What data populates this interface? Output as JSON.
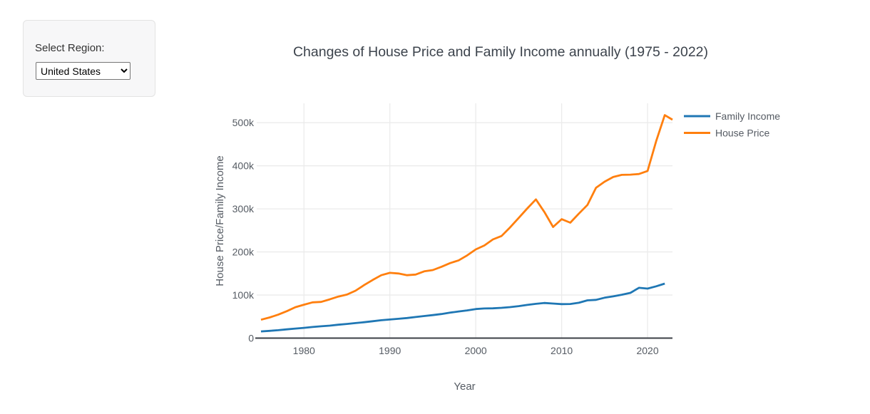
{
  "controls": {
    "region_label": "Select Region:",
    "region_value": "United States"
  },
  "colors": {
    "family_income_line": "#1f77b4",
    "house_price_line": "#ff7f0e",
    "grid": "#ebebeb",
    "axis_line": "#3b3f46",
    "tick_text": "#555b63",
    "title_text": "#3c434c",
    "panel_bg": "#f7f7f8"
  },
  "chart_data": {
    "type": "line",
    "title": "Changes of House Price and Family Income annually (1975 - 2022)",
    "xlabel": "Year",
    "ylabel": "House Price/Family Income",
    "grid": true,
    "legend_position": "outside-top-right",
    "x_range": [
      1974.5,
      2022.9
    ],
    "y_range_k": [
      0,
      545
    ],
    "x_ticks": [
      {
        "value": 1980,
        "label": "1980"
      },
      {
        "value": 1990,
        "label": "1990"
      },
      {
        "value": 2000,
        "label": "2000"
      },
      {
        "value": 2010,
        "label": "2010"
      },
      {
        "value": 2020,
        "label": "2020"
      }
    ],
    "y_ticks": [
      {
        "value_k": 0,
        "label": "0"
      },
      {
        "value_k": 100,
        "label": "100k"
      },
      {
        "value_k": 200,
        "label": "200k"
      },
      {
        "value_k": 300,
        "label": "300k"
      },
      {
        "value_k": 400,
        "label": "400k"
      },
      {
        "value_k": 500,
        "label": "500k"
      }
    ],
    "x": [
      1975,
      1976,
      1977,
      1978,
      1979,
      1980,
      1981,
      1982,
      1983,
      1984,
      1985,
      1986,
      1987,
      1988,
      1989,
      1990,
      1991,
      1992,
      1993,
      1994,
      1995,
      1996,
      1997,
      1998,
      1999,
      2000,
      2001,
      2002,
      2003,
      2004,
      2005,
      2006,
      2007,
      2008,
      2009,
      2010,
      2011,
      2012,
      2013,
      2014,
      2015,
      2016,
      2017,
      2018,
      2019,
      2020,
      2021,
      2022
    ],
    "series": [
      {
        "name": "Family Income",
        "color": "#1f77b4",
        "values_k": [
          15.5,
          16.9,
          18.4,
          20.3,
          22.2,
          23.9,
          25.8,
          27.4,
          28.9,
          31.1,
          32.9,
          34.9,
          36.9,
          39.2,
          41.5,
          43.2,
          44.8,
          46.6,
          49.0,
          51.3,
          53.5,
          55.9,
          59.0,
          61.8,
          64.3,
          67.5,
          68.8,
          69.2,
          70.3,
          72.0,
          74.3,
          77.0,
          79.5,
          81.5,
          80.2,
          78.9,
          79.3,
          82.0,
          87.6,
          88.9,
          93.8,
          96.9,
          100.8,
          105.0,
          116.7,
          115.0,
          120.2,
          126.5
        ]
      },
      {
        "name": "House Price",
        "color": "#ff7f0e",
        "values_k": [
          42.6,
          48.0,
          54.5,
          62.5,
          71.8,
          77.5,
          83.0,
          84.0,
          90.0,
          96.5,
          101.0,
          110.0,
          123.0,
          135.0,
          146.0,
          151.5,
          150.0,
          146.0,
          147.5,
          155.0,
          158.0,
          165.5,
          174.0,
          180.5,
          192.0,
          206.0,
          215.0,
          229.0,
          237.0,
          257.0,
          279.0,
          301.0,
          322.0,
          292.5,
          258.0,
          276.0,
          268.0,
          289.0,
          309.0,
          349.0,
          363.0,
          374.0,
          379.0,
          379.5,
          381.0,
          388.0,
          457.0,
          517.5
        ],
        "tail_point": {
          "x": 2022.9,
          "value_k": 507.0
        }
      }
    ]
  }
}
